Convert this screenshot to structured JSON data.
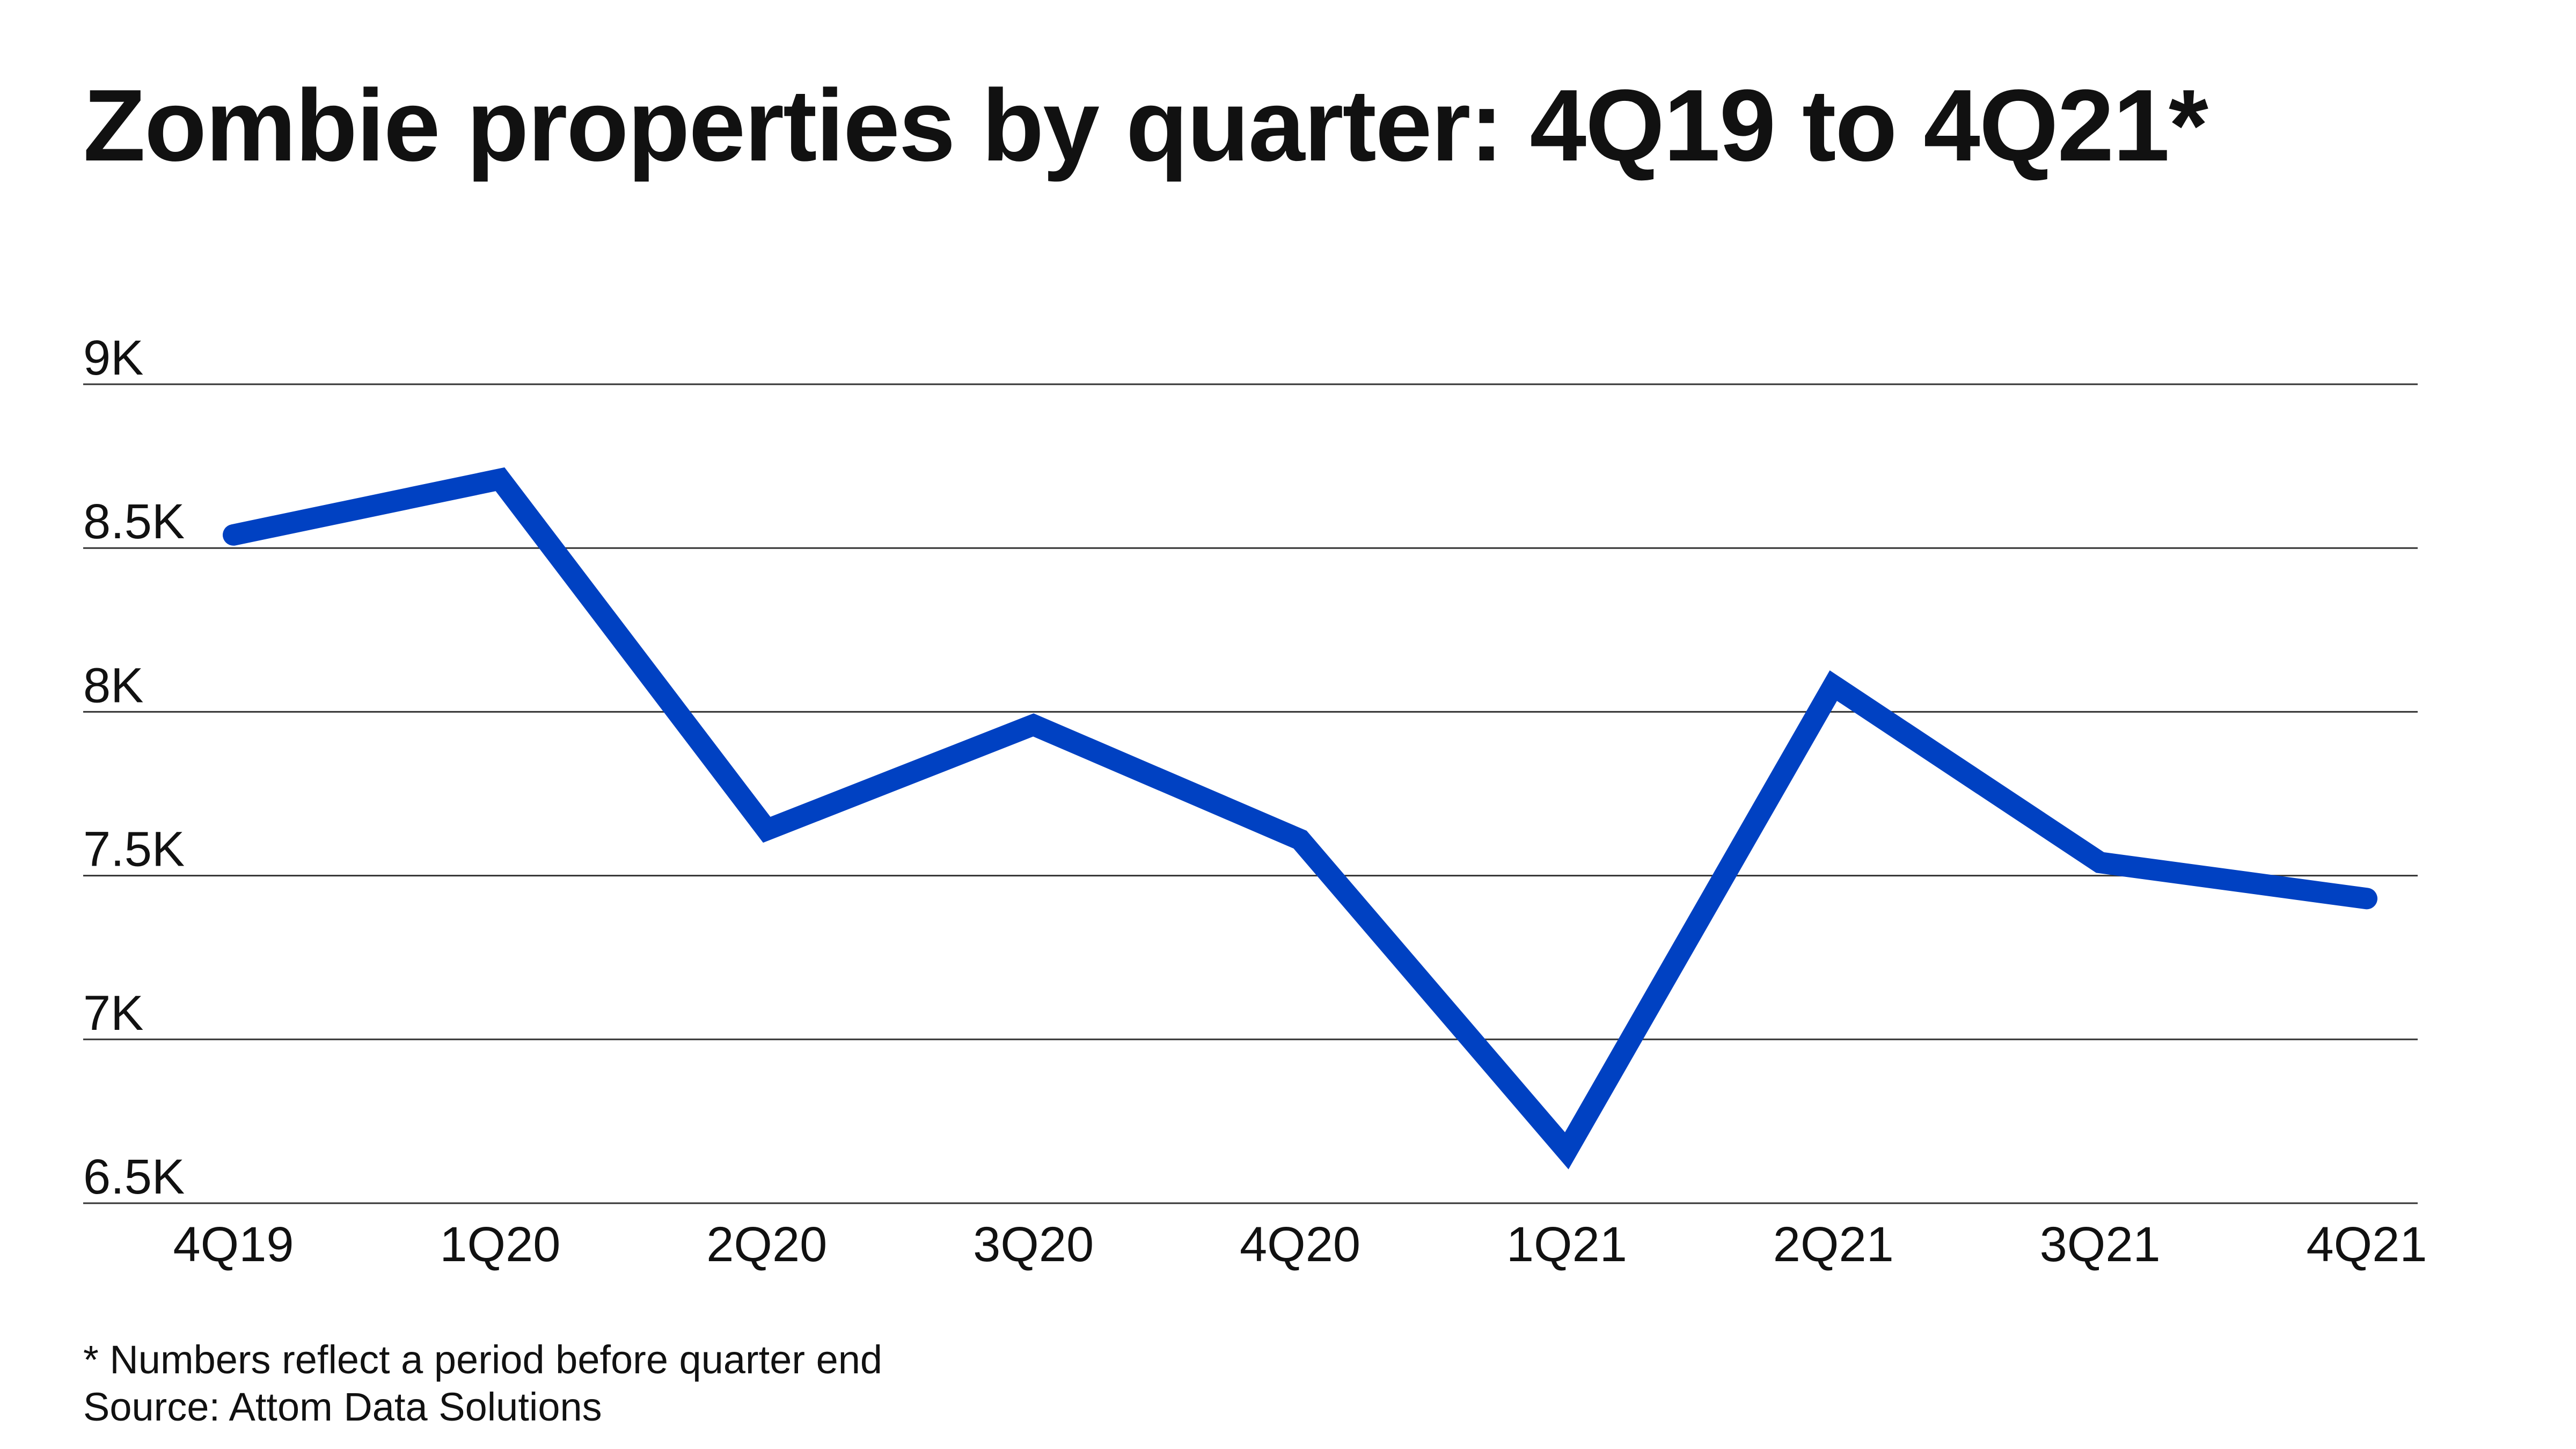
{
  "chart_data": {
    "type": "line",
    "title": "Zombie properties by quarter: 4Q19 to 4Q21*",
    "categories": [
      "4Q19",
      "1Q20",
      "2Q20",
      "3Q20",
      "4Q20",
      "1Q21",
      "2Q21",
      "3Q21",
      "4Q21"
    ],
    "series": [
      {
        "values": [
          8540,
          8710,
          7640,
          7960,
          7610,
          6660,
          8080,
          7540,
          7430
        ],
        "color": "#0041c2"
      }
    ],
    "ylim": [
      6500,
      9000
    ],
    "yticks": [
      6500,
      7000,
      7500,
      8000,
      8500,
      9000
    ],
    "ytick_labels": [
      "6.5K",
      "7K",
      "7.5K",
      "8K",
      "8.5K",
      "9K"
    ],
    "xlabel": "",
    "ylabel": "",
    "grid": true,
    "legend": "none"
  },
  "footnote": "* Numbers reflect a period before quarter end",
  "source": "Source: Attom Data Solutions",
  "colors": {
    "line": "#0041c2",
    "grid": "#333333",
    "text": "#111111"
  }
}
